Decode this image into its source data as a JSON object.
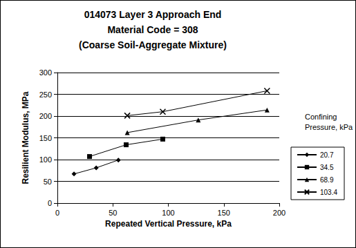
{
  "chart_data": {
    "type": "line",
    "title": "014073 Layer 3 Approach End\nMaterial Code = 308\n(Coarse Soil-Aggregate Mixture)",
    "x_label": "Repeated Vertical Pressure, kPa",
    "y_label": "Resilient Modulus, MPa",
    "legend_title": "Confining Pressure, kPa",
    "legend": "right",
    "grid": true,
    "xlim": [
      0,
      200
    ],
    "xticks": [
      0,
      50,
      100,
      150,
      200
    ],
    "ylim": [
      0,
      300
    ],
    "yticks": [
      0,
      50,
      100,
      150,
      200,
      250,
      300
    ],
    "series": [
      {
        "name": "20.7",
        "color": "#000000",
        "marker": "diamond",
        "x": [
          15,
          35,
          55
        ],
        "values": [
          67,
          81,
          99
        ]
      },
      {
        "name": "34.5",
        "color": "#000000",
        "marker": "square",
        "x": [
          29,
          62,
          95
        ],
        "values": [
          107,
          134,
          147
        ]
      },
      {
        "name": "68.9",
        "color": "#000000",
        "marker": "triangle",
        "x": [
          63,
          127,
          189
        ],
        "values": [
          162,
          191,
          214
        ]
      },
      {
        "name": "103.4",
        "color": "#000000",
        "marker": "x",
        "x": [
          63,
          95,
          189
        ],
        "values": [
          201,
          210,
          258
        ]
      }
    ]
  }
}
